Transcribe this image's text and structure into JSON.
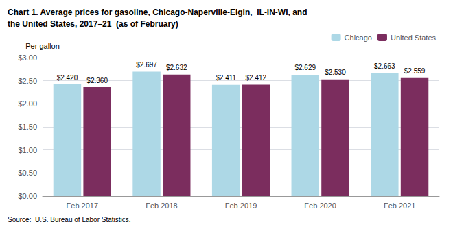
{
  "chart_data": {
    "type": "bar",
    "title": "Chart 1. Average prices for gasoline, Chicago-Naperville-Elgin,  IL-IN-WI, and\nthe United States, 2017–21  (as of February)",
    "ylabel": "Per gallon",
    "annotations": [
      "Source:  U.S. Bureau of Labor Statistics."
    ],
    "categories": [
      "Feb 2017",
      "Feb 2018",
      "Feb 2019",
      "Feb 2020",
      "Feb 2021"
    ],
    "series": [
      {
        "name": "Chicago",
        "color": "#add8e6",
        "values": [
          2.42,
          2.697,
          2.411,
          2.629,
          2.663
        ],
        "value_labels": [
          "$2.420",
          "$2.697",
          "$2.411",
          "$2.629",
          "$2.663"
        ]
      },
      {
        "name": "United States",
        "color": "#7b2d5e",
        "values": [
          2.36,
          2.632,
          2.412,
          2.53,
          2.559
        ],
        "value_labels": [
          "$2.360",
          "$2.632",
          "$2.412",
          "$2.530",
          "$2.559"
        ]
      }
    ],
    "ylim": [
      0.0,
      3.0
    ],
    "yticks": [
      {
        "value": 0.0,
        "label": "$0.00"
      },
      {
        "value": 0.5,
        "label": "$0.50"
      },
      {
        "value": 1.0,
        "label": "$1.00"
      },
      {
        "value": 1.5,
        "label": "$1.50"
      },
      {
        "value": 2.0,
        "label": "$2.00"
      },
      {
        "value": 2.5,
        "label": "$2.50"
      },
      {
        "value": 3.0,
        "label": "$3.00"
      }
    ],
    "grid": true,
    "legend": "upper right",
    "data_labels": true
  }
}
